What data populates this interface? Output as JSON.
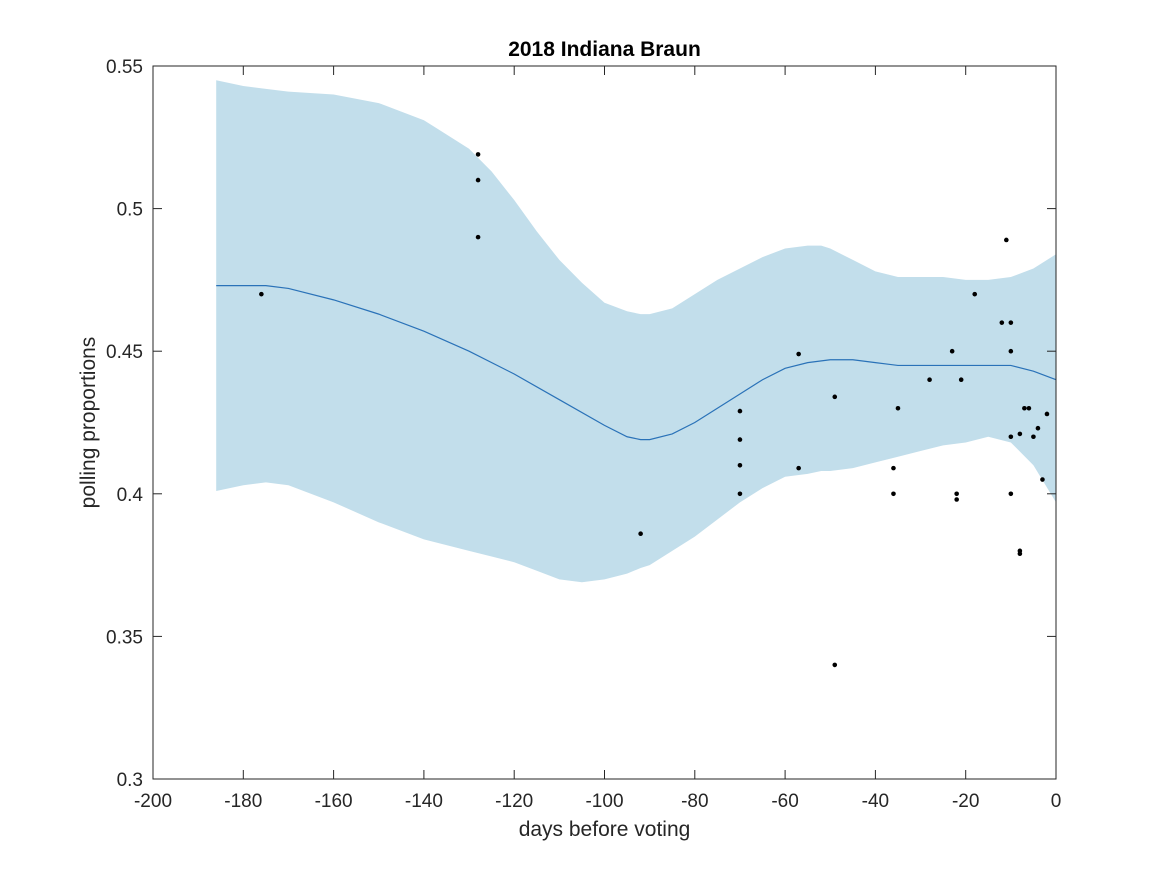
{
  "chart_data": {
    "type": "scatter",
    "title": "2018 Indiana Braun",
    "xlabel": "days before voting",
    "ylabel": "polling proportions",
    "xlim": [
      -200,
      0
    ],
    "ylim": [
      0.3,
      0.55
    ],
    "xticks": [
      -200,
      -180,
      -160,
      -140,
      -120,
      -100,
      -80,
      -60,
      -40,
      -20,
      0
    ],
    "yticks": [
      0.3,
      0.35,
      0.4,
      0.45,
      0.5,
      0.55
    ],
    "xtick_labels": [
      "-200",
      "-180",
      "-160",
      "-140",
      "-120",
      "-100",
      "-80",
      "-60",
      "-40",
      "-20",
      "0"
    ],
    "ytick_labels": [
      "0.3",
      "0.35",
      "0.4",
      "0.45",
      "0.5",
      "0.55"
    ],
    "grid": false,
    "colors": {
      "band": "#c2deeb",
      "line": "#2a72b8",
      "points": "#000000",
      "axes": "#262626"
    },
    "band": {
      "x": [
        -186,
        -180,
        -175,
        -170,
        -160,
        -150,
        -140,
        -130,
        -125,
        -120,
        -115,
        -110,
        -105,
        -100,
        -95,
        -92,
        -90,
        -85,
        -80,
        -75,
        -70,
        -65,
        -60,
        -55,
        -52,
        -50,
        -45,
        -40,
        -35,
        -30,
        -25,
        -20,
        -15,
        -10,
        -5,
        0
      ],
      "upper": [
        0.545,
        0.543,
        0.542,
        0.541,
        0.54,
        0.537,
        0.531,
        0.521,
        0.513,
        0.503,
        0.492,
        0.482,
        0.474,
        0.467,
        0.464,
        0.463,
        0.463,
        0.465,
        0.47,
        0.475,
        0.479,
        0.483,
        0.486,
        0.487,
        0.487,
        0.486,
        0.482,
        0.478,
        0.476,
        0.476,
        0.476,
        0.475,
        0.475,
        0.476,
        0.479,
        0.484
      ],
      "lower": [
        0.401,
        0.403,
        0.404,
        0.403,
        0.397,
        0.39,
        0.384,
        0.38,
        0.378,
        0.376,
        0.373,
        0.37,
        0.369,
        0.37,
        0.372,
        0.374,
        0.375,
        0.38,
        0.385,
        0.391,
        0.397,
        0.402,
        0.406,
        0.407,
        0.408,
        0.408,
        0.409,
        0.411,
        0.413,
        0.415,
        0.417,
        0.418,
        0.42,
        0.418,
        0.41,
        0.397
      ]
    },
    "series": [
      {
        "type": "line",
        "x": [
          -186,
          -180,
          -175,
          -170,
          -160,
          -150,
          -140,
          -130,
          -120,
          -110,
          -100,
          -95,
          -92,
          -90,
          -85,
          -80,
          -75,
          -70,
          -65,
          -60,
          -55,
          -50,
          -45,
          -40,
          -35,
          -30,
          -25,
          -20,
          -15,
          -10,
          -5,
          0
        ],
        "values": [
          0.473,
          0.473,
          0.473,
          0.472,
          0.468,
          0.463,
          0.457,
          0.45,
          0.442,
          0.433,
          0.424,
          0.42,
          0.419,
          0.419,
          0.421,
          0.425,
          0.43,
          0.435,
          0.44,
          0.444,
          0.446,
          0.447,
          0.447,
          0.446,
          0.445,
          0.445,
          0.445,
          0.445,
          0.445,
          0.445,
          0.443,
          0.44
        ]
      },
      {
        "type": "scatter",
        "points": [
          [
            -176,
            0.47
          ],
          [
            -128,
            0.519
          ],
          [
            -128,
            0.51
          ],
          [
            -128,
            0.49
          ],
          [
            -92,
            0.386
          ],
          [
            -70,
            0.429
          ],
          [
            -70,
            0.419
          ],
          [
            -70,
            0.41
          ],
          [
            -70,
            0.4
          ],
          [
            -57,
            0.449
          ],
          [
            -57,
            0.409
          ],
          [
            -49,
            0.434
          ],
          [
            -49,
            0.34
          ],
          [
            -36,
            0.409
          ],
          [
            -36,
            0.4
          ],
          [
            -35,
            0.43
          ],
          [
            -28,
            0.44
          ],
          [
            -23,
            0.45
          ],
          [
            -22,
            0.4
          ],
          [
            -22,
            0.398
          ],
          [
            -21,
            0.44
          ],
          [
            -18,
            0.47
          ],
          [
            -12,
            0.46
          ],
          [
            -11,
            0.489
          ],
          [
            -10,
            0.46
          ],
          [
            -10,
            0.45
          ],
          [
            -10,
            0.42
          ],
          [
            -10,
            0.4
          ],
          [
            -8,
            0.421
          ],
          [
            -8,
            0.38
          ],
          [
            -8,
            0.379
          ],
          [
            -7,
            0.43
          ],
          [
            -6,
            0.43
          ],
          [
            -5,
            0.42
          ],
          [
            -4,
            0.423
          ],
          [
            -3,
            0.405
          ],
          [
            -2,
            0.428
          ]
        ]
      }
    ]
  }
}
